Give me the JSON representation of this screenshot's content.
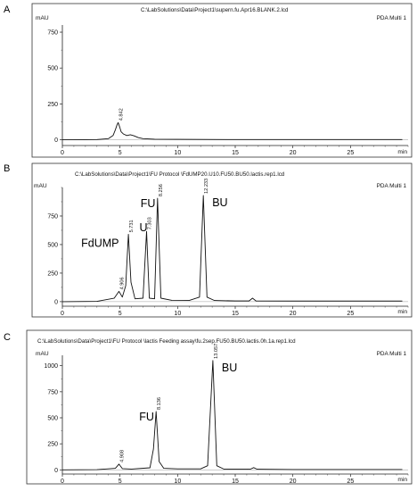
{
  "panels": [
    {
      "letter": "A",
      "file_path": "C:\\LabSolutions\\Data\\Project1\\supern.fu.Apr16.BLANK.2.lcd",
      "detector": "PDA Multi 1",
      "y_unit": "mAU",
      "x_unit": "min"
    },
    {
      "letter": "B",
      "file_path": "C:\\LabSolutions\\Data\\Project1\\FU Protocol \\FdUMP20.U10.FU50.BU50.lactis.rep1.lcd",
      "detector": "PDA Multi 1",
      "y_unit": "mAU",
      "x_unit": "min"
    },
    {
      "letter": "C",
      "file_path": "C:\\LabSolutions\\Data\\Project1\\FU Protocol \\lactis Feeding assay\\fu.2sep.FU50.BU50.lactis.0h.1a.rep1.lcd",
      "detector": "PDA Multi 1",
      "y_unit": "mAU",
      "x_unit": "min"
    }
  ],
  "chart_data": [
    {
      "type": "line",
      "panel": "A",
      "xlim": [
        0,
        30
      ],
      "ylim": [
        -40,
        800
      ],
      "x_ticks": [
        0,
        5,
        10,
        15,
        20,
        25
      ],
      "y_ticks": [
        0,
        250,
        500,
        750
      ],
      "grid": false,
      "peaks": [
        {
          "rt": 4.842,
          "rt_label": "4.842",
          "height": 120,
          "name": ""
        }
      ],
      "series": [
        {
          "x": [
            0,
            1,
            2,
            3,
            4,
            4.4,
            4.6,
            4.75,
            4.842,
            4.95,
            5.1,
            5.3,
            5.6,
            5.9,
            6.2,
            6.6,
            7.0,
            8,
            10,
            15,
            20,
            25,
            29.5
          ],
          "y": [
            0,
            0,
            1,
            2,
            8,
            30,
            70,
            105,
            120,
            95,
            55,
            40,
            30,
            35,
            28,
            15,
            8,
            4,
            3,
            2,
            2,
            2,
            2
          ]
        }
      ]
    },
    {
      "type": "line",
      "panel": "B",
      "xlim": [
        0,
        30
      ],
      "ylim": [
        -40,
        1000
      ],
      "x_ticks": [
        0,
        5,
        10,
        15,
        20,
        25
      ],
      "y_ticks": [
        0,
        250,
        500,
        750
      ],
      "grid": false,
      "peaks": [
        {
          "rt": 4.906,
          "rt_label": "4.906",
          "height": 90,
          "name": ""
        },
        {
          "rt": 5.731,
          "rt_label": "5.731",
          "height": 590,
          "name": "FdUMP"
        },
        {
          "rt": 7.303,
          "rt_label": "7.303",
          "height": 615,
          "name": "U"
        },
        {
          "rt": 8.256,
          "rt_label": "8.256",
          "height": 905,
          "name": "FU"
        },
        {
          "rt": 12.233,
          "rt_label": "12.233",
          "height": 930,
          "name": "BU"
        }
      ],
      "series": [
        {
          "x": [
            0,
            3,
            4.5,
            4.906,
            5.2,
            5.5,
            5.731,
            5.95,
            6.3,
            7.0,
            7.303,
            7.55,
            8.0,
            8.256,
            8.55,
            9.5,
            11,
            11.9,
            12.233,
            12.55,
            13.2,
            15,
            16.2,
            16.5,
            16.8,
            20,
            25,
            29.5
          ],
          "y": [
            0,
            2,
            30,
            90,
            40,
            140,
            590,
            170,
            25,
            30,
            615,
            30,
            25,
            905,
            30,
            12,
            10,
            40,
            930,
            40,
            10,
            6,
            6,
            30,
            6,
            5,
            5,
            5
          ]
        }
      ]
    },
    {
      "type": "line",
      "panel": "C",
      "xlim": [
        0,
        30
      ],
      "ylim": [
        -40,
        1100
      ],
      "x_ticks": [
        0,
        5,
        10,
        15,
        20,
        25
      ],
      "y_ticks": [
        0,
        250,
        500,
        750,
        1000
      ],
      "grid": false,
      "peaks": [
        {
          "rt": 4.908,
          "rt_label": "4.908",
          "height": 55,
          "name": ""
        },
        {
          "rt": 8.136,
          "rt_label": "8.136",
          "height": 560,
          "name": "FU"
        },
        {
          "rt": 13.057,
          "rt_label": "13.057",
          "height": 1050,
          "name": "BU"
        }
      ],
      "series": [
        {
          "x": [
            0,
            3,
            4.6,
            4.908,
            5.2,
            6,
            7.6,
            7.9,
            8.136,
            8.4,
            8.8,
            10,
            12,
            12.6,
            13.057,
            13.4,
            14,
            16.3,
            16.6,
            16.9,
            20,
            25,
            29.5
          ],
          "y": [
            0,
            2,
            15,
            55,
            12,
            8,
            20,
            200,
            560,
            80,
            15,
            10,
            10,
            40,
            1050,
            40,
            8,
            6,
            22,
            6,
            4,
            4,
            4
          ]
        }
      ]
    }
  ]
}
